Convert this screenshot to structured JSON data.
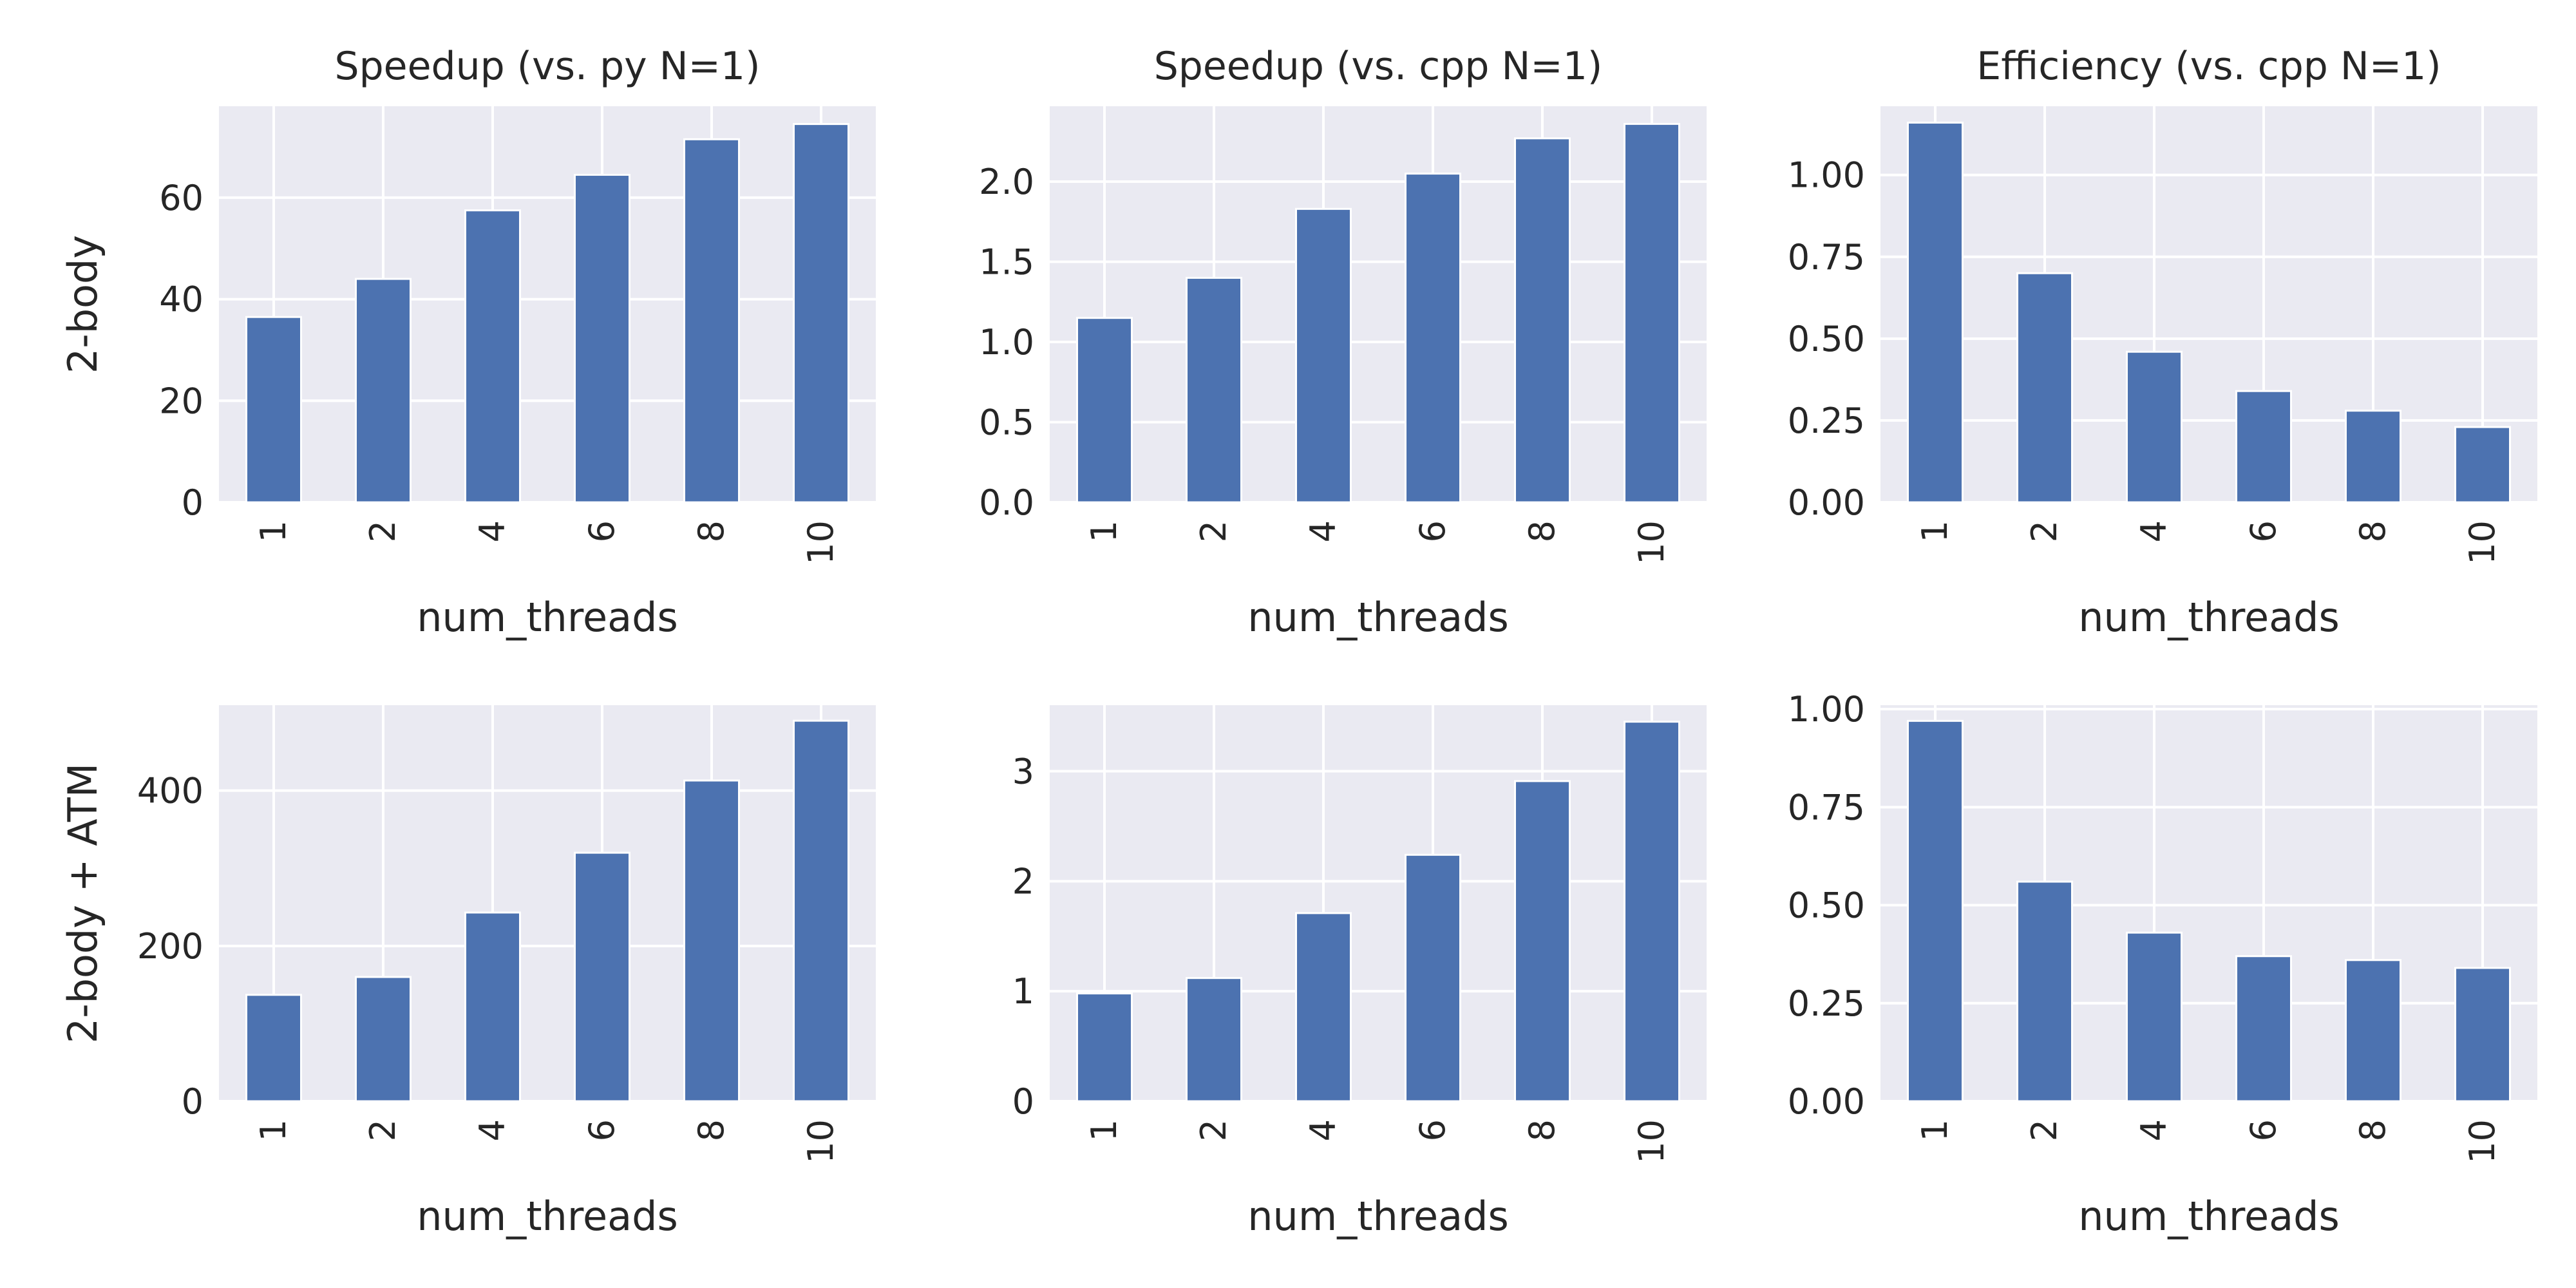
{
  "chart_data": [
    {
      "type": "bar",
      "title": "Speedup (vs. py N=1)",
      "row_label": "2-body",
      "xlabel": "num_threads",
      "ylabel": "",
      "categories": [
        "1",
        "2",
        "4",
        "6",
        "8",
        "10"
      ],
      "values": [
        36.5,
        44,
        57.5,
        64.5,
        71.5,
        74.5
      ],
      "ylim": [
        0,
        78
      ],
      "yticks": [
        0,
        20,
        40,
        60
      ],
      "ytick_labels": [
        "0",
        "20",
        "40",
        "60"
      ],
      "grid": true,
      "color": "#4c72b0"
    },
    {
      "type": "bar",
      "title": "Speedup (vs. cpp N=1)",
      "xlabel": "num_threads",
      "ylabel": "",
      "categories": [
        "1",
        "2",
        "4",
        "6",
        "8",
        "10"
      ],
      "values": [
        1.15,
        1.4,
        1.83,
        2.05,
        2.27,
        2.36
      ],
      "ylim": [
        0,
        2.47
      ],
      "yticks": [
        0,
        0.5,
        1,
        1.5,
        2
      ],
      "ytick_labels": [
        "0.0",
        "0.5",
        "1.0",
        "1.5",
        "2.0"
      ],
      "grid": true,
      "color": "#4c72b0"
    },
    {
      "type": "bar",
      "title": "Efficiency (vs. cpp N=1)",
      "xlabel": "num_threads",
      "ylabel": "",
      "categories": [
        "1",
        "2",
        "4",
        "6",
        "8",
        "10"
      ],
      "values": [
        1.16,
        0.7,
        0.46,
        0.34,
        0.28,
        0.23
      ],
      "ylim": [
        0,
        1.21
      ],
      "yticks": [
        0,
        0.25,
        0.5,
        0.75,
        1
      ],
      "ytick_labels": [
        "0.00",
        "0.25",
        "0.50",
        "0.75",
        "1.00"
      ],
      "grid": true,
      "color": "#4c72b0"
    },
    {
      "type": "bar",
      "row_label": "2-body + ATM",
      "xlabel": "num_threads",
      "ylabel": "",
      "categories": [
        "1",
        "2",
        "4",
        "6",
        "8",
        "10"
      ],
      "values": [
        137,
        160,
        243,
        320,
        413,
        490
      ],
      "ylim": [
        0,
        510
      ],
      "yticks": [
        0,
        200,
        400
      ],
      "ytick_labels": [
        "0",
        "200",
        "400"
      ],
      "grid": true,
      "color": "#4c72b0"
    },
    {
      "type": "bar",
      "xlabel": "num_threads",
      "ylabel": "",
      "categories": [
        "1",
        "2",
        "4",
        "6",
        "8",
        "10"
      ],
      "values": [
        0.98,
        1.12,
        1.71,
        2.24,
        2.91,
        3.45
      ],
      "ylim": [
        0,
        3.6
      ],
      "yticks": [
        0,
        1,
        2,
        3
      ],
      "ytick_labels": [
        "0",
        "1",
        "2",
        "3"
      ],
      "grid": true,
      "color": "#4c72b0"
    },
    {
      "type": "bar",
      "xlabel": "num_threads",
      "ylabel": "",
      "categories": [
        "1",
        "2",
        "4",
        "6",
        "8",
        "10"
      ],
      "values": [
        0.97,
        0.56,
        0.43,
        0.37,
        0.36,
        0.34
      ],
      "ylim": [
        0,
        1.01
      ],
      "yticks": [
        0,
        0.25,
        0.5,
        0.75,
        1
      ],
      "ytick_labels": [
        "0.00",
        "0.25",
        "0.50",
        "0.75",
        "1.00"
      ],
      "grid": true,
      "color": "#4c72b0"
    }
  ],
  "style": {
    "plot_background": "#eaeaf2",
    "grid_color": "#ffffff",
    "bar_color": "#4c72b0"
  }
}
